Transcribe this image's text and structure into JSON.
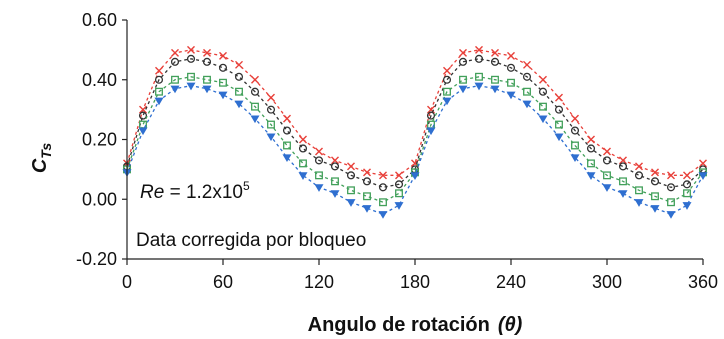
{
  "chart_data": {
    "type": "scatter",
    "xlabel_main": "Angulo de rotación",
    "xlabel_symbol": "(θ)",
    "ylabel_main": "C",
    "ylabel_sub": "Ts",
    "xlim": [
      0,
      360
    ],
    "ylim": [
      -0.2,
      0.6
    ],
    "x_ticks": [
      0,
      60,
      120,
      180,
      240,
      300,
      360
    ],
    "y_ticks": [
      -0.2,
      0.0,
      0.2,
      0.4,
      0.6
    ],
    "y_tick_labels": [
      "-0.20",
      "0.00",
      "0.20",
      "0.40",
      "0.60"
    ],
    "annotation_re_prefix": "Re",
    "annotation_re_value": " = 1.2x10",
    "annotation_re_exp": "5",
    "annotation_note": "Data corregida por bloqueo",
    "grid": false,
    "legend": "none",
    "x": [
      0,
      10,
      20,
      30,
      40,
      50,
      60,
      70,
      80,
      90,
      100,
      110,
      120,
      130,
      140,
      150,
      160,
      170,
      180,
      190,
      200,
      210,
      220,
      230,
      240,
      250,
      260,
      270,
      280,
      290,
      300,
      310,
      320,
      330,
      340,
      350,
      360
    ],
    "series": [
      {
        "color": "#e8403a",
        "marker": "x-mark",
        "values": [
          0.12,
          0.3,
          0.43,
          0.49,
          0.5,
          0.49,
          0.48,
          0.45,
          0.4,
          0.34,
          0.27,
          0.2,
          0.16,
          0.13,
          0.11,
          0.09,
          0.08,
          0.08,
          0.12,
          0.3,
          0.43,
          0.49,
          0.5,
          0.49,
          0.48,
          0.45,
          0.4,
          0.34,
          0.27,
          0.2,
          0.16,
          0.13,
          0.11,
          0.09,
          0.08,
          0.08,
          0.12
        ]
      },
      {
        "color": "#333333",
        "marker": "circle",
        "values": [
          0.11,
          0.28,
          0.4,
          0.46,
          0.47,
          0.46,
          0.44,
          0.41,
          0.36,
          0.3,
          0.23,
          0.17,
          0.13,
          0.11,
          0.08,
          0.06,
          0.04,
          0.05,
          0.1,
          0.28,
          0.4,
          0.46,
          0.47,
          0.46,
          0.44,
          0.41,
          0.36,
          0.3,
          0.23,
          0.17,
          0.13,
          0.11,
          0.08,
          0.06,
          0.04,
          0.05,
          0.1
        ]
      },
      {
        "color": "#42a05a",
        "marker": "square",
        "values": [
          0.1,
          0.25,
          0.36,
          0.4,
          0.41,
          0.4,
          0.39,
          0.36,
          0.31,
          0.25,
          0.18,
          0.12,
          0.08,
          0.06,
          0.03,
          0.01,
          -0.01,
          0.02,
          0.09,
          0.25,
          0.36,
          0.4,
          0.41,
          0.4,
          0.39,
          0.36,
          0.31,
          0.25,
          0.18,
          0.12,
          0.08,
          0.06,
          0.03,
          0.01,
          -0.01,
          0.02,
          0.09
        ]
      },
      {
        "color": "#2f6fd0",
        "marker": "triangle-down",
        "values": [
          0.09,
          0.23,
          0.33,
          0.37,
          0.38,
          0.37,
          0.35,
          0.32,
          0.27,
          0.21,
          0.14,
          0.08,
          0.04,
          0.02,
          -0.01,
          -0.03,
          -0.05,
          -0.02,
          0.08,
          0.23,
          0.33,
          0.37,
          0.38,
          0.37,
          0.35,
          0.32,
          0.27,
          0.21,
          0.14,
          0.08,
          0.04,
          0.02,
          -0.01,
          -0.03,
          -0.05,
          -0.02,
          0.08
        ]
      }
    ]
  }
}
